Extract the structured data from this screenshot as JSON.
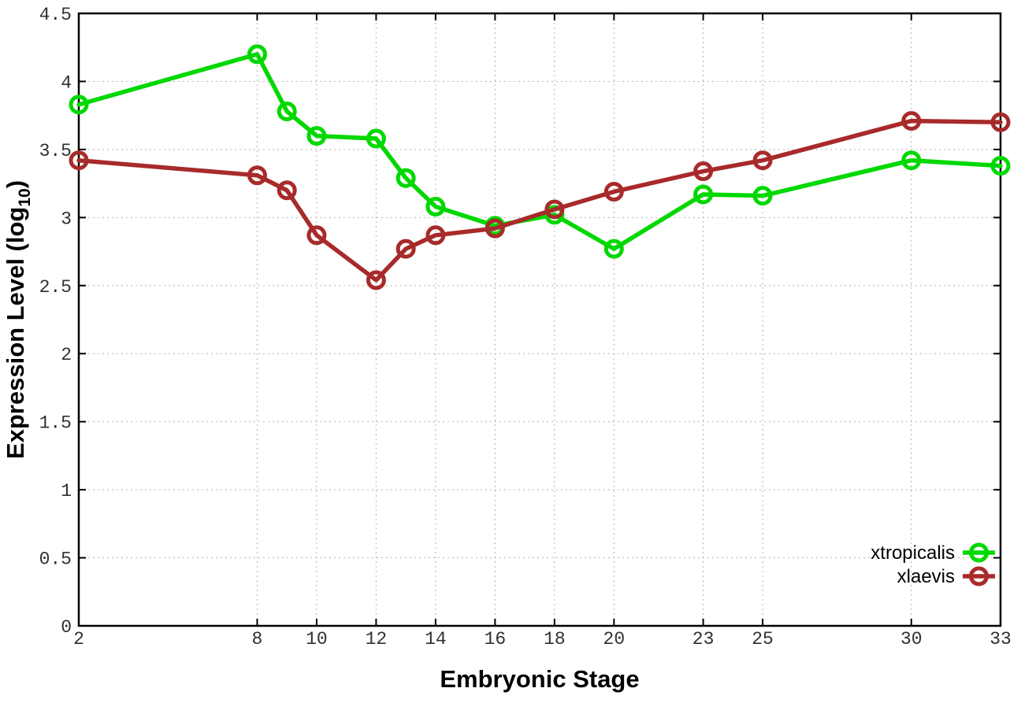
{
  "chart_data": {
    "type": "line",
    "title": "",
    "xlabel": "Embryonic Stage",
    "ylabel": "Expression Level (log10)",
    "ylabel_parts": {
      "main": "Expression Level (log",
      "sub": "10",
      "close": ")"
    },
    "x": [
      2,
      8,
      9,
      10,
      12,
      13,
      14,
      16,
      18,
      20,
      23,
      25,
      30,
      33
    ],
    "series": [
      {
        "name": "xtropicalis",
        "color": "#00d800",
        "values": [
          3.83,
          4.2,
          3.78,
          3.6,
          3.58,
          3.29,
          3.08,
          2.94,
          3.02,
          2.77,
          3.17,
          3.16,
          3.42,
          3.38
        ]
      },
      {
        "name": "xlaevis",
        "color": "#a82a2a",
        "values": [
          3.42,
          3.31,
          3.2,
          2.87,
          2.54,
          2.77,
          2.87,
          2.92,
          3.06,
          3.19,
          3.34,
          3.42,
          3.71,
          3.7
        ]
      }
    ],
    "xlim": [
      2,
      33
    ],
    "ylim": [
      0,
      4.5
    ],
    "x_ticks": [
      2,
      8,
      10,
      12,
      14,
      16,
      18,
      20,
      23,
      25,
      30,
      33
    ],
    "x_tick_labels": [
      "2",
      "8",
      "10",
      "12",
      "14",
      "16",
      "18",
      "20",
      "23",
      "25",
      "30",
      "33"
    ],
    "y_ticks": [
      0,
      0.5,
      1,
      1.5,
      2,
      2.5,
      3,
      3.5,
      4,
      4.5
    ],
    "y_tick_labels": [
      "0",
      "0.5",
      "1",
      "1.5",
      "2",
      "2.5",
      "3",
      "3.5",
      "4",
      "4.5"
    ],
    "grid": true,
    "grid_style": "dotted",
    "legend_position": "inside-bottom-right",
    "legend": [
      {
        "label": "xtropicalis",
        "color": "#00d800"
      },
      {
        "label": "xlaevis",
        "color": "#a82a2a"
      }
    ],
    "colors": {
      "background": "#ffffff",
      "border": "#000000",
      "grid": "#b4b4b4",
      "tick_text": "#303030"
    }
  }
}
